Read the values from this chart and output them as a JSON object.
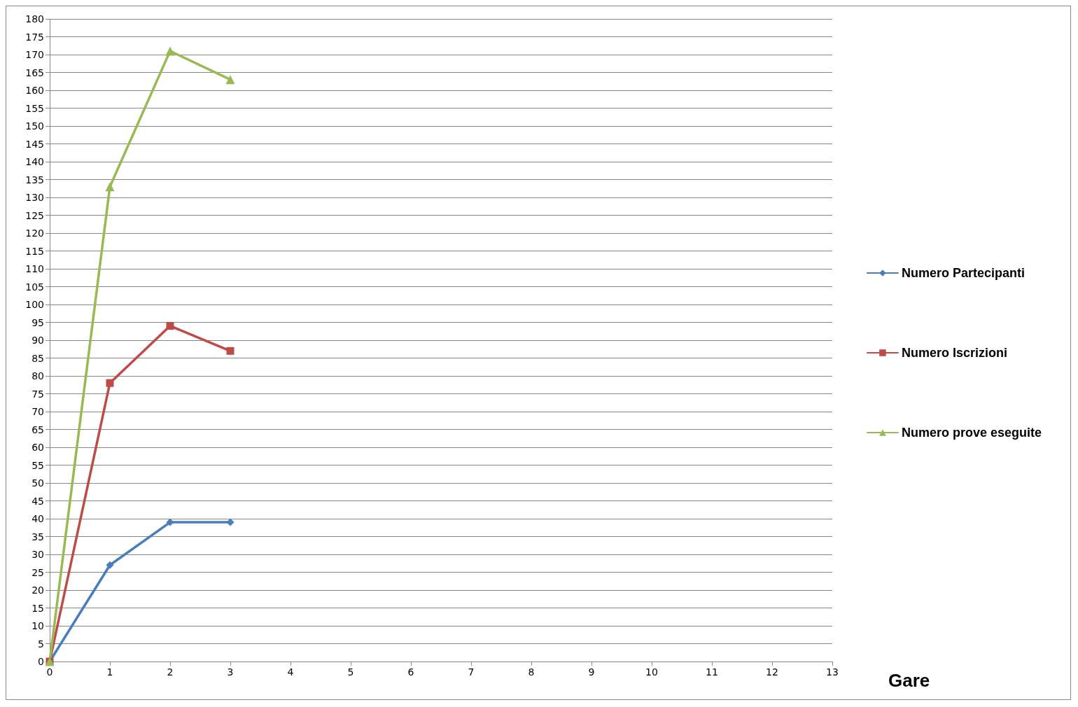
{
  "chart_data": {
    "type": "line",
    "xlabel": "Gare",
    "x": [
      0,
      1,
      2,
      3
    ],
    "series": [
      {
        "name": "Numero Partecipanti",
        "color": "#4a7ebb",
        "values": [
          0,
          27,
          39,
          39
        ],
        "marker": "diamond"
      },
      {
        "name": "Numero Iscrizioni",
        "color": "#be4b48",
        "values": [
          0,
          78,
          94,
          87
        ],
        "marker": "square"
      },
      {
        "name": "Numero prove eseguite",
        "color": "#98b954",
        "values": [
          0,
          133,
          171,
          163
        ],
        "marker": "triangle"
      }
    ],
    "xlim": [
      0,
      13
    ],
    "xticks": [
      0,
      1,
      2,
      3,
      4,
      5,
      6,
      7,
      8,
      9,
      10,
      11,
      12,
      13
    ],
    "ylim": [
      0,
      180
    ],
    "yticks": [
      0,
      5,
      10,
      15,
      20,
      25,
      30,
      35,
      40,
      45,
      50,
      55,
      60,
      65,
      70,
      75,
      80,
      85,
      90,
      95,
      100,
      105,
      110,
      115,
      120,
      125,
      130,
      135,
      140,
      145,
      150,
      155,
      160,
      165,
      170,
      175,
      180
    ],
    "grid": "y",
    "legend": "right",
    "line_style": "solid"
  }
}
